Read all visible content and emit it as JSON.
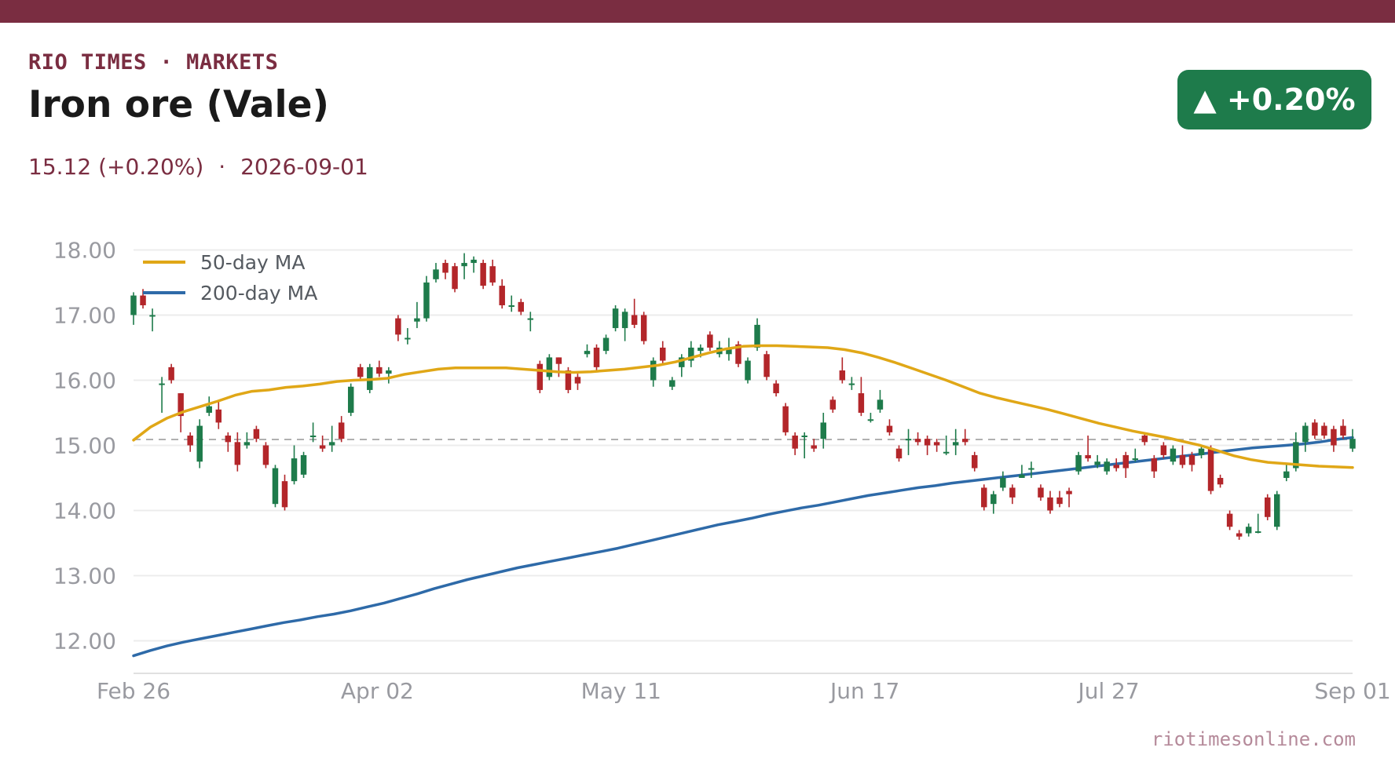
{
  "header": {
    "brand": "RIO TIMES · MARKETS",
    "title": "Iron ore (Vale)",
    "price": "15.12",
    "change_text": "(+0.20%)",
    "separator": "·",
    "date": "2026-09-01",
    "badge": "▲ +0.20%"
  },
  "footer": {
    "source": "riotimesonline.com"
  },
  "colors": {
    "brand": "#7a2d41",
    "up": "#1e7b4b",
    "down": "#b3262a",
    "ma50": "#e0a717",
    "ma200": "#2e6aa8",
    "reference": "#b0b0b0",
    "grid": "#ececec"
  },
  "chart_data": {
    "type": "candlestick",
    "x_ticks": [
      "Feb 26",
      "Apr 02",
      "May 11",
      "Jun 17",
      "Jul 27",
      "Sep 01"
    ],
    "y_ticks": [
      "12.00",
      "13.00",
      "14.00",
      "15.00",
      "16.00",
      "17.00",
      "18.00"
    ],
    "ylim": [
      11.5,
      18.15
    ],
    "reference_line": 15.09,
    "legend": {
      "position": "top-left",
      "items": [
        "50-day MA",
        "200-day MA"
      ]
    },
    "candles": [
      [
        17.0,
        17.3,
        16.85,
        17.35
      ],
      [
        17.3,
        17.15,
        17.1,
        17.4
      ],
      [
        17.0,
        17.0,
        16.75,
        17.1
      ],
      [
        15.95,
        15.95,
        15.5,
        16.05
      ],
      [
        16.2,
        16.0,
        15.95,
        16.25
      ],
      [
        15.8,
        15.45,
        15.2,
        15.8
      ],
      [
        15.15,
        15.0,
        14.9,
        15.2
      ],
      [
        14.75,
        15.3,
        14.65,
        15.4
      ],
      [
        15.5,
        15.6,
        15.45,
        15.75
      ],
      [
        15.55,
        15.35,
        15.25,
        15.7
      ],
      [
        15.15,
        15.05,
        14.9,
        15.2
      ],
      [
        15.05,
        14.7,
        14.6,
        15.2
      ],
      [
        15.0,
        15.05,
        14.95,
        15.2
      ],
      [
        15.25,
        15.1,
        15.05,
        15.3
      ],
      [
        15.0,
        14.7,
        14.65,
        15.05
      ],
      [
        14.1,
        14.65,
        14.05,
        14.7
      ],
      [
        14.45,
        14.05,
        14.0,
        14.55
      ],
      [
        14.45,
        14.8,
        14.4,
        15.0
      ],
      [
        14.55,
        14.85,
        14.5,
        14.9
      ],
      [
        15.15,
        15.15,
        15.05,
        15.35
      ],
      [
        15.0,
        14.95,
        14.9,
        15.15
      ],
      [
        15.0,
        15.05,
        14.9,
        15.3
      ],
      [
        15.35,
        15.1,
        15.05,
        15.45
      ],
      [
        15.5,
        15.9,
        15.45,
        15.95
      ],
      [
        16.2,
        16.05,
        16.0,
        16.25
      ],
      [
        15.85,
        16.2,
        15.8,
        16.25
      ],
      [
        16.2,
        16.1,
        16.05,
        16.3
      ],
      [
        16.1,
        16.15,
        15.95,
        16.2
      ],
      [
        16.95,
        16.7,
        16.6,
        17.0
      ],
      [
        16.65,
        16.65,
        16.55,
        16.8
      ],
      [
        16.9,
        16.95,
        16.8,
        17.2
      ],
      [
        16.95,
        17.5,
        16.9,
        17.6
      ],
      [
        17.55,
        17.7,
        17.5,
        17.8
      ],
      [
        17.8,
        17.65,
        17.55,
        17.85
      ],
      [
        17.75,
        17.4,
        17.35,
        17.8
      ],
      [
        17.75,
        17.8,
        17.55,
        17.95
      ],
      [
        17.8,
        17.85,
        17.65,
        17.9
      ],
      [
        17.8,
        17.45,
        17.4,
        17.85
      ],
      [
        17.75,
        17.5,
        17.45,
        17.85
      ],
      [
        17.45,
        17.15,
        17.1,
        17.55
      ],
      [
        17.15,
        17.15,
        17.05,
        17.3
      ],
      [
        17.2,
        17.05,
        17.0,
        17.25
      ],
      [
        16.95,
        16.95,
        16.75,
        17.05
      ],
      [
        16.25,
        15.85,
        15.8,
        16.3
      ],
      [
        16.05,
        16.35,
        16.0,
        16.4
      ],
      [
        16.35,
        16.25,
        16.05,
        16.35
      ],
      [
        16.15,
        15.85,
        15.8,
        16.2
      ],
      [
        16.05,
        15.95,
        15.85,
        16.1
      ],
      [
        16.4,
        16.45,
        16.35,
        16.55
      ],
      [
        16.5,
        16.2,
        16.15,
        16.55
      ],
      [
        16.45,
        16.65,
        16.4,
        16.7
      ],
      [
        16.8,
        17.1,
        16.75,
        17.15
      ],
      [
        16.8,
        17.05,
        16.6,
        17.1
      ],
      [
        17.0,
        16.85,
        16.8,
        17.25
      ],
      [
        17.0,
        16.6,
        16.55,
        17.05
      ],
      [
        16.0,
        16.3,
        15.9,
        16.35
      ],
      [
        16.5,
        16.3,
        16.25,
        16.6
      ],
      [
        15.9,
        16.0,
        15.85,
        16.05
      ],
      [
        16.2,
        16.35,
        16.05,
        16.4
      ],
      [
        16.3,
        16.5,
        16.2,
        16.6
      ],
      [
        16.45,
        16.5,
        16.35,
        16.55
      ],
      [
        16.7,
        16.5,
        16.45,
        16.75
      ],
      [
        16.4,
        16.5,
        16.35,
        16.6
      ],
      [
        16.4,
        16.5,
        16.3,
        16.65
      ],
      [
        16.55,
        16.25,
        16.2,
        16.6
      ],
      [
        16.0,
        16.3,
        15.95,
        16.35
      ],
      [
        16.5,
        16.85,
        16.45,
        16.95
      ],
      [
        16.4,
        16.05,
        16.0,
        16.45
      ],
      [
        15.95,
        15.8,
        15.75,
        16.0
      ],
      [
        15.6,
        15.2,
        15.15,
        15.65
      ],
      [
        15.15,
        14.95,
        14.85,
        15.2
      ],
      [
        15.15,
        15.15,
        14.8,
        15.2
      ],
      [
        15.0,
        14.95,
        14.9,
        15.1
      ],
      [
        15.1,
        15.35,
        14.95,
        15.5
      ],
      [
        15.7,
        15.55,
        15.5,
        15.75
      ],
      [
        16.15,
        16.0,
        15.95,
        16.35
      ],
      [
        15.95,
        15.95,
        15.85,
        16.05
      ],
      [
        15.8,
        15.5,
        15.45,
        16.05
      ],
      [
        15.4,
        15.4,
        15.35,
        15.5
      ],
      [
        15.55,
        15.7,
        15.5,
        15.85
      ],
      [
        15.3,
        15.2,
        15.15,
        15.4
      ],
      [
        14.95,
        14.8,
        14.75,
        15.0
      ],
      [
        15.1,
        15.1,
        14.85,
        15.25
      ],
      [
        15.1,
        15.05,
        15.0,
        15.2
      ],
      [
        15.1,
        15.0,
        14.85,
        15.15
      ],
      [
        15.05,
        15.0,
        14.9,
        15.1
      ],
      [
        14.9,
        14.9,
        14.85,
        15.15
      ],
      [
        15.0,
        15.05,
        14.85,
        15.25
      ],
      [
        15.1,
        15.05,
        15.0,
        15.25
      ],
      [
        14.85,
        14.65,
        14.6,
        14.9
      ],
      [
        14.35,
        14.05,
        14.0,
        14.4
      ],
      [
        14.1,
        14.25,
        13.95,
        14.3
      ],
      [
        14.35,
        14.5,
        14.3,
        14.6
      ],
      [
        14.35,
        14.2,
        14.1,
        14.4
      ],
      [
        14.5,
        14.55,
        14.5,
        14.7
      ],
      [
        14.65,
        14.65,
        14.5,
        14.75
      ],
      [
        14.35,
        14.2,
        14.15,
        14.4
      ],
      [
        14.2,
        14.0,
        13.95,
        14.3
      ],
      [
        14.2,
        14.1,
        14.05,
        14.3
      ],
      [
        14.3,
        14.25,
        14.05,
        14.35
      ],
      [
        14.6,
        14.85,
        14.55,
        14.9
      ],
      [
        14.85,
        14.8,
        14.75,
        15.15
      ],
      [
        14.7,
        14.75,
        14.65,
        14.85
      ],
      [
        14.6,
        14.75,
        14.55,
        14.8
      ],
      [
        14.7,
        14.65,
        14.6,
        14.8
      ],
      [
        14.85,
        14.65,
        14.5,
        14.9
      ],
      [
        14.8,
        14.8,
        14.75,
        14.95
      ],
      [
        15.15,
        15.05,
        15.0,
        15.2
      ],
      [
        14.8,
        14.6,
        14.5,
        14.85
      ],
      [
        15.0,
        14.85,
        14.8,
        15.05
      ],
      [
        14.75,
        14.95,
        14.7,
        15.0
      ],
      [
        14.85,
        14.7,
        14.65,
        15.0
      ],
      [
        14.85,
        14.7,
        14.6,
        14.9
      ],
      [
        14.85,
        14.95,
        14.8,
        15.0
      ],
      [
        14.95,
        14.3,
        14.25,
        15.0
      ],
      [
        14.5,
        14.4,
        14.35,
        14.55
      ],
      [
        13.95,
        13.75,
        13.7,
        14.0
      ],
      [
        13.65,
        13.6,
        13.55,
        13.7
      ],
      [
        13.65,
        13.75,
        13.6,
        13.8
      ],
      [
        13.68,
        13.68,
        13.65,
        13.95
      ],
      [
        14.2,
        13.9,
        13.85,
        14.25
      ],
      [
        13.75,
        14.25,
        13.7,
        14.3
      ],
      [
        14.5,
        14.6,
        14.45,
        14.7
      ],
      [
        14.65,
        15.05,
        14.6,
        15.2
      ],
      [
        15.05,
        15.3,
        14.9,
        15.35
      ],
      [
        15.35,
        15.15,
        15.1,
        15.4
      ],
      [
        15.3,
        15.15,
        15.1,
        15.35
      ],
      [
        15.25,
        15.0,
        14.9,
        15.3
      ],
      [
        15.3,
        15.15,
        15.1,
        15.4
      ],
      [
        14.95,
        15.1,
        14.9,
        15.25
      ]
    ],
    "ma50": [
      15.08,
      15.28,
      15.42,
      15.52,
      15.6,
      15.68,
      15.77,
      15.83,
      15.85,
      15.89,
      15.91,
      15.94,
      15.98,
      16.0,
      16.01,
      16.03,
      16.09,
      16.13,
      16.17,
      16.19,
      16.19,
      16.19,
      16.19,
      16.17,
      16.15,
      16.13,
      16.12,
      16.13,
      16.15,
      16.17,
      16.2,
      16.23,
      16.28,
      16.35,
      16.42,
      16.48,
      16.52,
      16.53,
      16.53,
      16.52,
      16.51,
      16.5,
      16.47,
      16.42,
      16.35,
      16.27,
      16.18,
      16.09,
      16.0,
      15.9,
      15.8,
      15.73,
      15.67,
      15.61,
      15.55,
      15.48,
      15.41,
      15.34,
      15.28,
      15.22,
      15.17,
      15.12,
      15.06,
      15.0,
      14.92,
      14.84,
      14.78,
      14.74,
      14.72,
      14.7,
      14.68,
      14.67,
      14.66
    ],
    "ma200": [
      11.77,
      11.85,
      11.92,
      11.98,
      12.03,
      12.08,
      12.13,
      12.18,
      12.23,
      12.28,
      12.32,
      12.37,
      12.41,
      12.46,
      12.52,
      12.58,
      12.65,
      12.72,
      12.8,
      12.87,
      12.94,
      13.0,
      13.06,
      13.12,
      13.17,
      13.22,
      13.27,
      13.32,
      13.37,
      13.42,
      13.48,
      13.54,
      13.6,
      13.66,
      13.72,
      13.78,
      13.83,
      13.88,
      13.94,
      13.99,
      14.04,
      14.08,
      14.13,
      14.18,
      14.23,
      14.27,
      14.31,
      14.35,
      14.38,
      14.42,
      14.45,
      14.48,
      14.51,
      14.54,
      14.57,
      14.6,
      14.63,
      14.66,
      14.69,
      14.72,
      14.75,
      14.78,
      14.81,
      14.84,
      14.87,
      14.9,
      14.93,
      14.96,
      14.98,
      15.0,
      15.02,
      15.05,
      15.09,
      15.12
    ]
  }
}
